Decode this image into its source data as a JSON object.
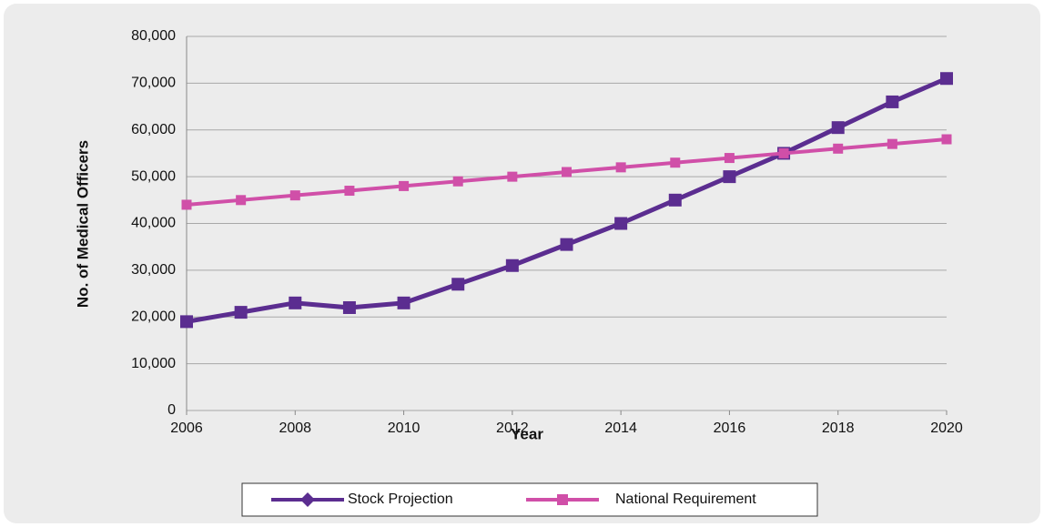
{
  "chart_data": {
    "type": "line",
    "x": [
      2006,
      2007,
      2008,
      2009,
      2010,
      2011,
      2012,
      2013,
      2014,
      2015,
      2016,
      2017,
      2018,
      2019,
      2020
    ],
    "series": [
      {
        "name": "Stock Projection",
        "color": "#5b2d90",
        "values": [
          19000,
          21000,
          23000,
          22000,
          23000,
          27000,
          31000,
          35500,
          40000,
          45000,
          50000,
          55000,
          60500,
          66000,
          71000
        ]
      },
      {
        "name": "National Requirement",
        "color": "#d04fa8",
        "values": [
          44000,
          45000,
          46000,
          47000,
          48000,
          49000,
          50000,
          51000,
          52000,
          53000,
          54000,
          55000,
          56000,
          57000,
          58000
        ]
      }
    ],
    "xlabel": "Year",
    "ylabel": "No. of Medical Officers",
    "xlim": [
      2006,
      2020
    ],
    "xticks": [
      2006,
      2008,
      2010,
      2012,
      2014,
      2016,
      2018,
      2020
    ],
    "ylim": [
      0,
      80000
    ],
    "yticks": [
      0,
      {
        "value": 10000,
        "label": "10,000"
      },
      {
        "value": 20000,
        "label": "20,000"
      },
      {
        "value": 30000,
        "label": "30,000"
      },
      {
        "value": 40000,
        "label": "40,000"
      },
      {
        "value": 50000,
        "label": "50,000"
      },
      {
        "value": 60000,
        "label": "60,000"
      },
      {
        "value": 70000,
        "label": "70,000"
      },
      {
        "value": 80000,
        "label": "80,000"
      }
    ],
    "grid": true,
    "legend": "bottom"
  }
}
